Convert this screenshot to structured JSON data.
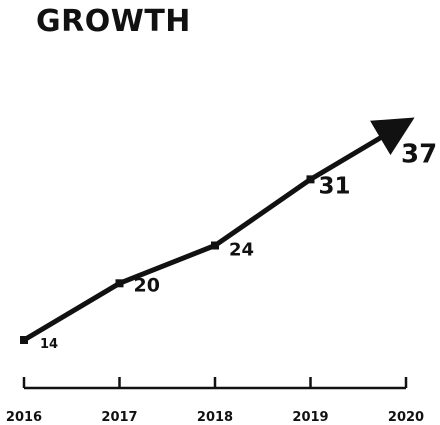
{
  "chart_data": {
    "type": "line",
    "title": "GROWTH",
    "categories": [
      "2016",
      "2017",
      "2018",
      "2019",
      "2020"
    ],
    "series": [
      {
        "values": [
          14,
          20,
          24,
          31,
          37
        ]
      }
    ],
    "data_labels": [
      "14",
      "20",
      "24",
      "31",
      "37"
    ],
    "end_marker": "arrow",
    "grid": false,
    "legend": "none",
    "colors": {
      "line": "#111111",
      "text": "#111111",
      "background": "#ffffff"
    }
  }
}
